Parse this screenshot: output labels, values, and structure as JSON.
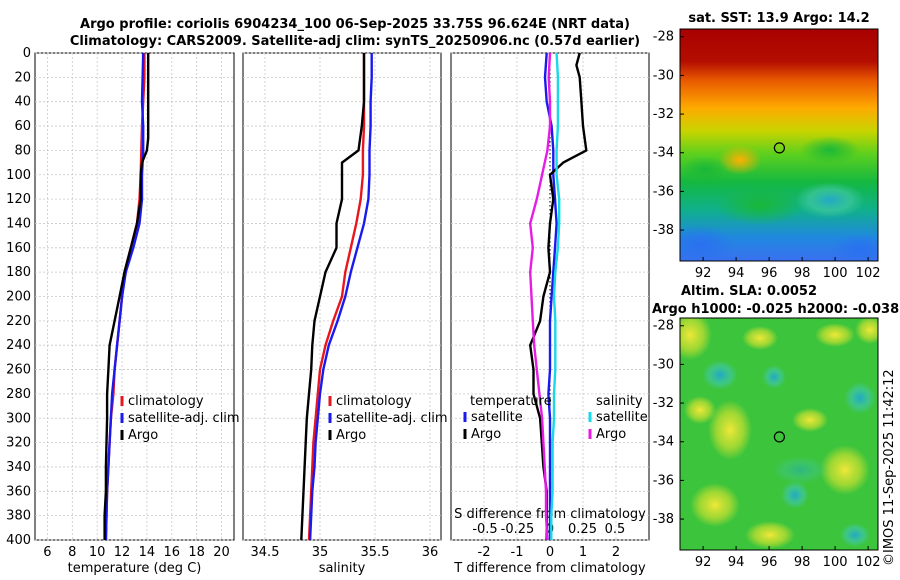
{
  "header": {
    "line1": "Argo profile: coriolis 6904234_100 06-Sep-2025 33.75S 96.624E (NRT data)",
    "line2": "Climatology: CARS2009. Satellite-adj clim: synTS_20250906.nc (0.57d earlier)"
  },
  "copyright": "©IMOS 11-Sep-2025 11:42:12",
  "colors": {
    "red": "#e8161e",
    "blue": "#1a1aee",
    "black": "#000000",
    "cyan": "#19d8e8",
    "magenta": "#e61be6"
  },
  "depth_ticks": [
    "0",
    "20",
    "40",
    "60",
    "80",
    "100",
    "120",
    "140",
    "160",
    "180",
    "200",
    "220",
    "240",
    "260",
    "280",
    "300",
    "320",
    "340",
    "360",
    "380",
    "400"
  ],
  "chart_data": [
    {
      "type": "line",
      "title": "",
      "xlabel": "temperature (deg C)",
      "ylabel": "depth",
      "xlim": [
        5,
        21
      ],
      "ylim": [
        400,
        0
      ],
      "xticks": [
        "6",
        "8",
        "10",
        "12",
        "14",
        "16",
        "18",
        "20"
      ],
      "xtick_values": [
        6,
        8,
        10,
        12,
        14,
        16,
        18,
        20
      ],
      "legend": [
        "climatology",
        "satellite-adj. clim",
        "Argo"
      ],
      "legend_position": "lower-right",
      "series": [
        {
          "name": "climatology",
          "color": "red",
          "depth": [
            0,
            20,
            40,
            60,
            80,
            100,
            120,
            140,
            160,
            180,
            200,
            220,
            240,
            260,
            280,
            300,
            320,
            340,
            360,
            380,
            400
          ],
          "values": [
            13.8,
            13.8,
            13.7,
            13.6,
            13.55,
            13.5,
            13.4,
            13.2,
            12.7,
            12.2,
            12.0,
            11.8,
            11.6,
            11.4,
            11.3,
            11.1,
            11.0,
            10.9,
            10.8,
            10.75,
            10.7
          ]
        },
        {
          "name": "satellite-adj. clim",
          "color": "blue",
          "depth": [
            0,
            20,
            40,
            60,
            80,
            100,
            120,
            140,
            160,
            180,
            200,
            220,
            240,
            260,
            280,
            300,
            320,
            340,
            360,
            380,
            400
          ],
          "values": [
            13.7,
            13.65,
            13.6,
            13.7,
            13.7,
            13.6,
            13.6,
            13.4,
            12.9,
            12.3,
            12.0,
            11.8,
            11.6,
            11.4,
            11.2,
            11.1,
            11.0,
            10.9,
            10.8,
            10.75,
            10.7
          ]
        },
        {
          "name": "Argo",
          "color": "black",
          "depth": [
            0,
            10,
            20,
            40,
            60,
            70,
            80,
            90,
            100,
            120,
            140,
            160,
            180,
            200,
            220,
            240,
            260,
            280,
            300,
            320,
            340,
            360,
            380,
            400
          ],
          "values": [
            14.1,
            14.1,
            14.1,
            14.1,
            14.1,
            14.1,
            14.0,
            13.6,
            13.5,
            13.5,
            13.2,
            12.7,
            12.2,
            11.8,
            11.4,
            11.0,
            10.9,
            10.8,
            10.8,
            10.75,
            10.7,
            10.7,
            10.6,
            10.6
          ]
        }
      ]
    },
    {
      "type": "line",
      "title": "",
      "xlabel": "salinity",
      "ylabel": "",
      "xlim": [
        34.3,
        36.1
      ],
      "ylim": [
        400,
        0
      ],
      "xticks": [
        "34.5",
        "35",
        "35.5",
        "36"
      ],
      "xtick_values": [
        34.5,
        35,
        35.5,
        36
      ],
      "legend": [
        "climatology",
        "satellite-adj. clim",
        "Argo"
      ],
      "legend_position": "lower-right",
      "series": [
        {
          "name": "climatology",
          "color": "red",
          "depth": [
            0,
            20,
            40,
            60,
            80,
            100,
            120,
            140,
            160,
            180,
            200,
            220,
            240,
            260,
            280,
            300,
            320,
            340,
            360,
            380,
            400
          ],
          "values": [
            35.4,
            35.4,
            35.4,
            35.4,
            35.39,
            35.39,
            35.37,
            35.33,
            35.28,
            35.23,
            35.2,
            35.12,
            35.05,
            35.0,
            34.98,
            34.96,
            34.94,
            34.93,
            34.92,
            34.91,
            34.9
          ]
        },
        {
          "name": "satellite-adj. clim",
          "color": "blue",
          "depth": [
            0,
            20,
            40,
            60,
            80,
            100,
            120,
            140,
            160,
            180,
            200,
            220,
            240,
            260,
            280,
            300,
            320,
            340,
            360,
            380,
            400
          ],
          "values": [
            35.47,
            35.47,
            35.46,
            35.46,
            35.45,
            35.45,
            35.44,
            35.4,
            35.34,
            35.28,
            35.23,
            35.16,
            35.08,
            35.03,
            35.0,
            34.98,
            34.96,
            34.95,
            34.93,
            34.92,
            34.91
          ]
        },
        {
          "name": "Argo",
          "color": "black",
          "depth": [
            0,
            20,
            40,
            60,
            80,
            90,
            100,
            120,
            140,
            160,
            180,
            200,
            220,
            240,
            260,
            280,
            300,
            320,
            340,
            360,
            380,
            400
          ],
          "values": [
            35.4,
            35.4,
            35.4,
            35.38,
            35.35,
            35.2,
            35.2,
            35.2,
            35.15,
            35.15,
            35.05,
            35.0,
            34.95,
            34.93,
            34.92,
            34.9,
            34.88,
            34.87,
            34.86,
            34.85,
            34.84,
            34.83
          ]
        }
      ]
    },
    {
      "type": "line",
      "title": "",
      "xlabel": "T difference from climatology",
      "xlabel_top": "S difference from climatology",
      "ylabel": "",
      "xlim": [
        -3,
        3
      ],
      "ylim": [
        400,
        0
      ],
      "xticks": [
        "-2",
        "-1",
        "0",
        "1",
        "2"
      ],
      "xtick_values": [
        -2,
        -1,
        0,
        1,
        2
      ],
      "s_ticks": [
        "-0.5",
        "-0.25",
        "0",
        "0.25",
        "0.5"
      ],
      "legend_left_title": "temperature",
      "legend_right_title": "salinity",
      "legend": [
        "satellite",
        "Argo",
        "satellite",
        "Argo"
      ],
      "legend_position": "lower-center",
      "series": [
        {
          "name": "T satellite",
          "color": "blue",
          "depth": [
            0,
            20,
            40,
            60,
            80,
            100,
            120,
            140,
            160,
            180,
            200,
            220,
            240,
            260,
            280,
            300,
            320,
            340,
            360,
            380,
            400
          ],
          "values": [
            -0.1,
            -0.15,
            -0.1,
            0.05,
            0.1,
            0.1,
            0.15,
            0.2,
            0.15,
            0.1,
            0.05,
            0.0,
            0.0,
            0.0,
            -0.05,
            0.0,
            0.0,
            0.0,
            0.0,
            0.0,
            0.0
          ]
        },
        {
          "name": "T Argo",
          "color": "black",
          "depth": [
            0,
            10,
            20,
            40,
            60,
            80,
            90,
            100,
            120,
            140,
            160,
            180,
            200,
            220,
            240,
            260,
            280,
            300,
            320,
            340,
            360,
            380,
            400
          ],
          "values": [
            0.9,
            0.8,
            0.9,
            0.95,
            1.0,
            1.1,
            0.4,
            0.0,
            0.1,
            0.0,
            -0.05,
            0.0,
            -0.2,
            -0.3,
            -0.6,
            -0.5,
            -0.5,
            -0.3,
            -0.25,
            -0.2,
            -0.1,
            -0.1,
            -0.1
          ]
        },
        {
          "name": "S satellite",
          "color": "cyan",
          "depth": [
            0,
            20,
            40,
            60,
            80,
            100,
            120,
            140,
            160,
            180,
            200,
            220,
            240,
            260,
            280,
            300,
            320,
            340,
            360,
            380,
            400
          ],
          "values": [
            0.05,
            0.06,
            0.06,
            0.06,
            0.05,
            0.05,
            0.07,
            0.07,
            0.06,
            0.04,
            0.03,
            0.04,
            0.04,
            0.04,
            0.03,
            0.03,
            0.02,
            0.02,
            0.02,
            0.01,
            0.01
          ]
        },
        {
          "name": "S Argo",
          "color": "magenta",
          "depth": [
            0,
            20,
            40,
            60,
            80,
            100,
            120,
            140,
            160,
            180,
            200,
            220,
            240,
            260,
            280,
            300,
            320,
            340,
            360,
            380,
            400
          ],
          "values": [
            0.0,
            -0.01,
            0.0,
            0.0,
            -0.02,
            -0.06,
            -0.1,
            -0.15,
            -0.13,
            -0.15,
            -0.14,
            -0.13,
            -0.12,
            -0.1,
            -0.08,
            -0.06,
            -0.05,
            -0.04,
            -0.03,
            -0.03,
            -0.02
          ]
        }
      ]
    },
    {
      "type": "heatmap",
      "title": "sat. SST: 13.9 Argo: 14.2",
      "xlabel": "",
      "ylabel": "",
      "xlim": [
        90.6,
        102.6
      ],
      "ylim": [
        -39.6,
        -27.6
      ],
      "xticks": [
        "92",
        "94",
        "96",
        "98",
        "100",
        "102"
      ],
      "yticks": [
        "-28",
        "-30",
        "-32",
        "-34",
        "-36",
        "-38"
      ],
      "marker": {
        "lon": 96.624,
        "lat": -33.75
      }
    },
    {
      "type": "heatmap",
      "title": "Altim. SLA: 0.0052",
      "subtitle": "Argo h1000: -0.025 h2000: -0.038",
      "xlabel": "",
      "ylabel": "",
      "xlim": [
        90.6,
        102.6
      ],
      "ylim": [
        -39.6,
        -27.6
      ],
      "xticks": [
        "92",
        "94",
        "96",
        "98",
        "100",
        "102"
      ],
      "yticks": [
        "-28",
        "-30",
        "-32",
        "-34",
        "-36",
        "-38"
      ],
      "marker": {
        "lon": 96.624,
        "lat": -33.75
      }
    }
  ]
}
